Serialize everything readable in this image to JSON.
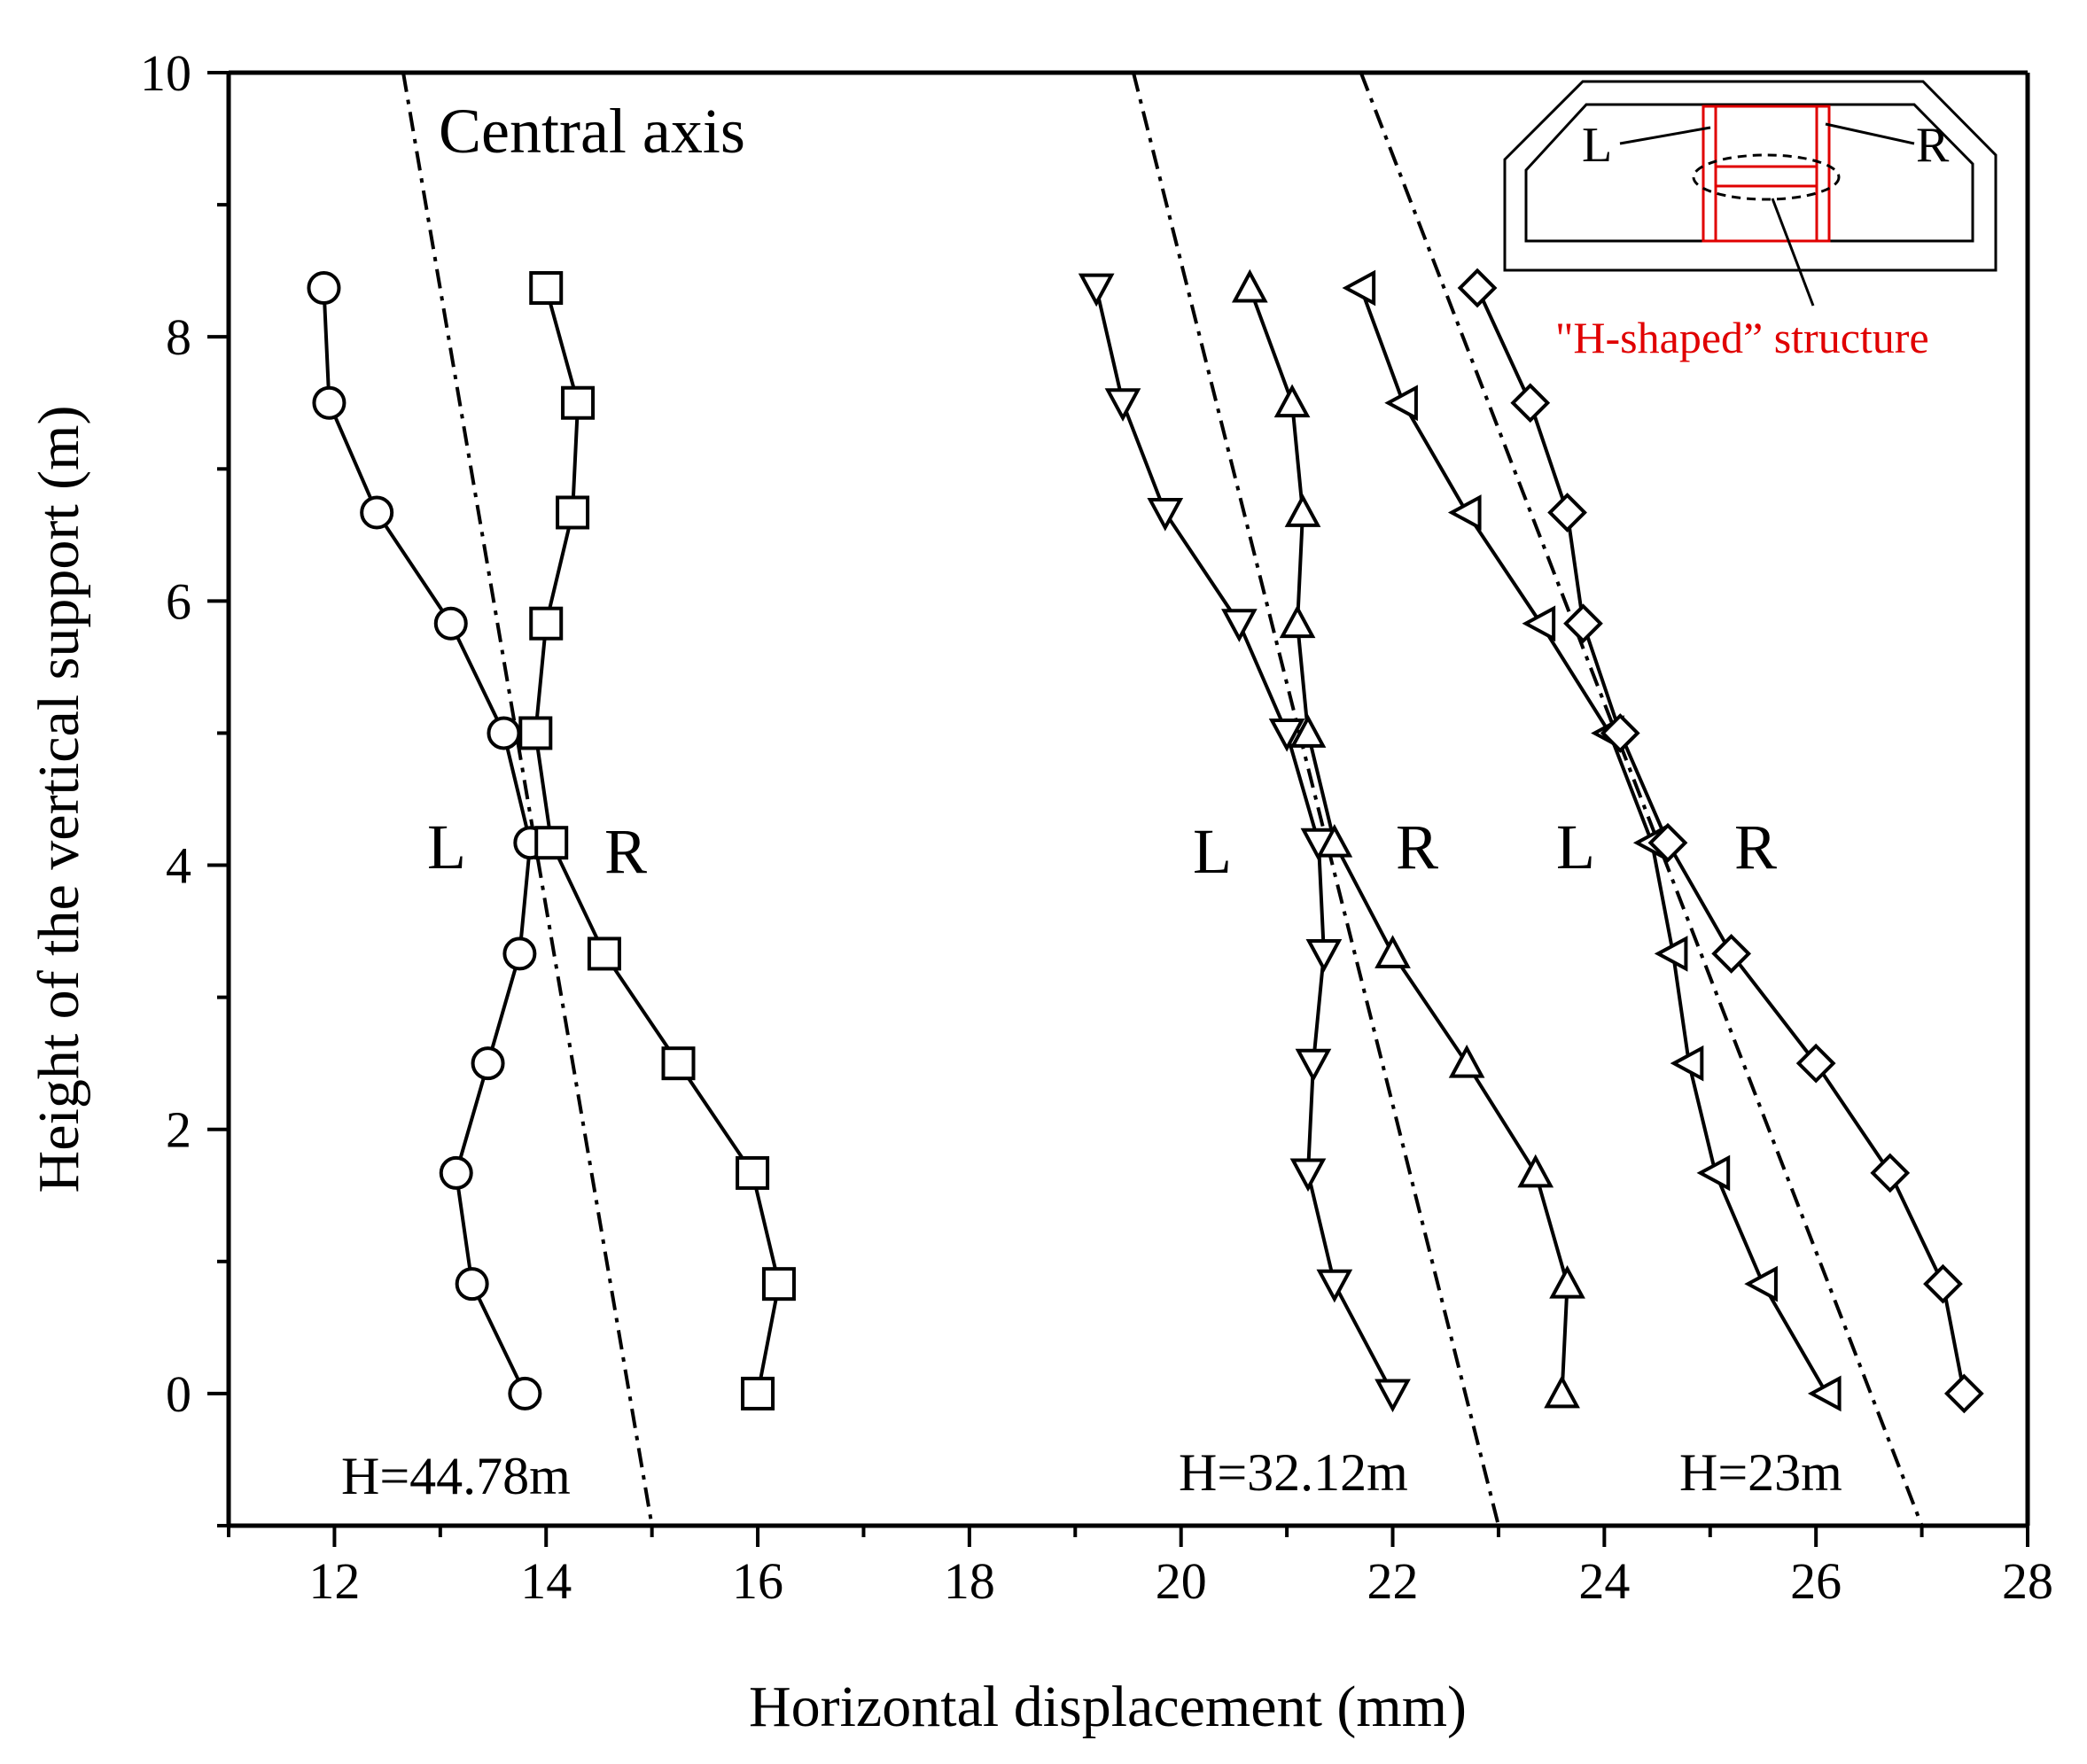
{
  "chart_data": {
    "type": "line",
    "xlabel": "Horizontal displacement (mm)",
    "ylabel": "Height of the vertical support (m)",
    "xlim": [
      11,
      28
    ],
    "ylim": [
      -1,
      10
    ],
    "xticks": [
      12,
      14,
      16,
      18,
      20,
      22,
      24,
      26,
      28
    ],
    "yticks": [
      0,
      2,
      4,
      6,
      8,
      10
    ],
    "grid": false,
    "heights": [
      0,
      0.83,
      1.67,
      2.5,
      3.33,
      4.17,
      5.0,
      5.83,
      6.67,
      7.5,
      8.37
    ],
    "series": [
      {
        "marker": "circle",
        "x": [
          13.8,
          13.3,
          13.15,
          13.45,
          13.75,
          13.85,
          13.6,
          13.1,
          12.4,
          11.95,
          11.9
        ]
      },
      {
        "marker": "square",
        "x": [
          16.0,
          16.2,
          15.95,
          15.25,
          14.55,
          14.05,
          13.9,
          14.0,
          14.25,
          14.3,
          14.0
        ]
      },
      {
        "marker": "triangle-down",
        "x": [
          22.0,
          21.45,
          21.2,
          21.25,
          21.35,
          21.3,
          21.0,
          20.55,
          19.85,
          19.45,
          19.2
        ]
      },
      {
        "marker": "triangle-up",
        "x": [
          23.6,
          23.65,
          23.35,
          22.7,
          22.0,
          21.45,
          21.2,
          21.1,
          21.15,
          21.05,
          20.65
        ]
      },
      {
        "marker": "triangle-left",
        "x": [
          26.1,
          25.5,
          25.05,
          24.8,
          24.65,
          24.45,
          24.05,
          23.4,
          22.7,
          22.1,
          21.7
        ]
      },
      {
        "marker": "diamond",
        "x": [
          27.4,
          27.2,
          26.7,
          26.0,
          25.2,
          24.6,
          24.15,
          23.8,
          23.65,
          23.3,
          22.8
        ]
      }
    ],
    "central_axes": [
      {
        "label": "H=44.78m",
        "x_top": 12.65,
        "x_bottom": 15.0
      },
      {
        "label": "H=32.12m",
        "x_top": 19.55,
        "x_bottom": 23.0
      },
      {
        "label": "H=23m",
        "x_top": 21.7,
        "x_bottom": 27.0
      }
    ],
    "annotations": {
      "central_axis": "Central axis",
      "lr": [
        {
          "L": "L",
          "R": "R"
        },
        {
          "L": "L",
          "R": "R"
        },
        {
          "L": "L",
          "R": "R"
        }
      ]
    },
    "inset": {
      "left": "L",
      "right": "R",
      "caption": "\"H-shaped” structure",
      "caption_color": "#e00000"
    }
  }
}
